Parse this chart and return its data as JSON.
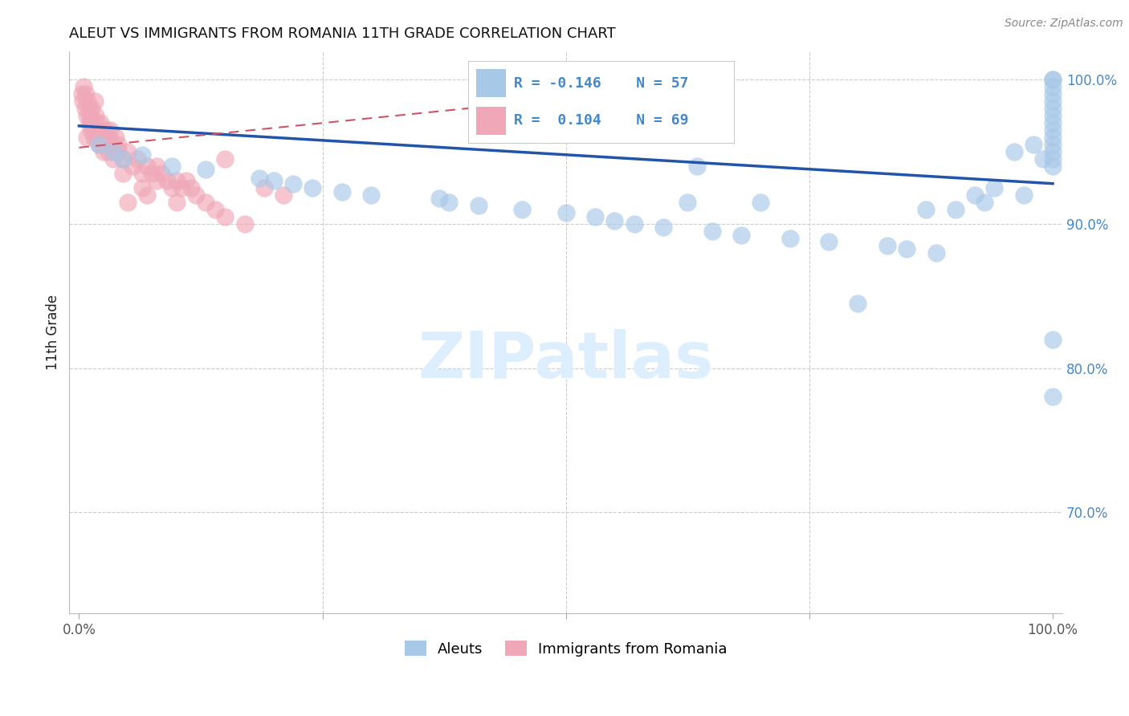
{
  "title": "ALEUT VS IMMIGRANTS FROM ROMANIA 11TH GRADE CORRELATION CHART",
  "source": "Source: ZipAtlas.com",
  "ylabel": "11th Grade",
  "legend_label_blue": "Aleuts",
  "legend_label_pink": "Immigrants from Romania",
  "blue_color": "#a8c8e8",
  "pink_color": "#f0a8b8",
  "blue_line_color": "#2255aa",
  "pink_line_color": "#cc5566",
  "watermark_color": "#ddeeff",
  "right_axis_color": "#4488cc",
  "grid_color": "#cccccc",
  "aleuts_x": [
    2.0,
    3.5,
    4.5,
    6.5,
    9.5,
    13.0,
    18.5,
    20.0,
    22.0,
    24.0,
    27.0,
    30.0,
    37.0,
    38.0,
    41.0,
    45.5,
    50.0,
    53.0,
    55.0,
    57.0,
    60.0,
    62.5,
    63.5,
    65.0,
    68.0,
    70.0,
    73.0,
    77.0,
    80.0,
    83.0,
    85.0,
    87.0,
    88.0,
    90.0,
    92.0,
    93.0,
    94.0,
    96.0,
    97.0,
    98.0,
    99.0,
    100.0,
    100.0,
    100.0,
    100.0,
    100.0,
    100.0,
    100.0,
    100.0,
    100.0,
    100.0,
    100.0,
    100.0,
    100.0,
    100.0,
    100.0,
    100.0
  ],
  "aleuts_y": [
    95.5,
    95.0,
    94.5,
    94.8,
    94.0,
    93.8,
    93.2,
    93.0,
    92.8,
    92.5,
    92.2,
    92.0,
    91.8,
    91.5,
    91.3,
    91.0,
    90.8,
    90.5,
    90.2,
    90.0,
    89.8,
    91.5,
    94.0,
    89.5,
    89.2,
    91.5,
    89.0,
    88.8,
    84.5,
    88.5,
    88.3,
    91.0,
    88.0,
    91.0,
    92.0,
    91.5,
    92.5,
    95.0,
    92.0,
    95.5,
    94.5,
    100.0,
    100.0,
    99.5,
    99.0,
    98.5,
    98.0,
    97.5,
    97.0,
    96.5,
    96.0,
    95.5,
    95.0,
    94.5,
    94.0,
    82.0,
    78.0
  ],
  "romania_x": [
    0.3,
    0.4,
    0.5,
    0.6,
    0.7,
    0.8,
    0.9,
    1.0,
    1.0,
    1.1,
    1.2,
    1.3,
    1.4,
    1.5,
    1.6,
    1.7,
    1.8,
    1.9,
    2.0,
    2.1,
    2.2,
    2.3,
    2.4,
    2.5,
    2.6,
    2.7,
    2.8,
    3.0,
    3.2,
    3.5,
    3.8,
    4.0,
    4.5,
    5.0,
    5.5,
    6.0,
    6.5,
    7.0,
    7.5,
    8.0,
    8.5,
    9.0,
    9.5,
    10.0,
    10.5,
    11.0,
    11.5,
    12.0,
    13.0,
    14.0,
    15.0,
    17.0,
    19.0,
    21.0,
    4.5,
    8.0,
    15.0,
    5.0,
    7.0,
    10.0,
    3.0,
    6.5,
    4.0,
    2.5,
    1.5,
    0.8,
    1.2,
    2.0,
    3.5
  ],
  "romania_y": [
    99.0,
    98.5,
    99.5,
    98.0,
    99.0,
    97.5,
    98.5,
    97.0,
    98.0,
    97.5,
    96.5,
    98.0,
    97.0,
    96.0,
    98.5,
    97.5,
    96.0,
    97.0,
    95.5,
    96.5,
    97.0,
    95.5,
    96.0,
    95.0,
    96.0,
    95.5,
    96.5,
    95.0,
    96.5,
    95.5,
    96.0,
    95.5,
    94.5,
    95.0,
    94.0,
    94.5,
    93.5,
    94.0,
    93.5,
    93.0,
    93.5,
    93.0,
    92.5,
    93.0,
    92.5,
    93.0,
    92.5,
    92.0,
    91.5,
    91.0,
    90.5,
    90.0,
    92.5,
    92.0,
    93.5,
    94.0,
    94.5,
    91.5,
    92.0,
    91.5,
    96.0,
    92.5,
    95.0,
    95.5,
    96.5,
    96.0,
    97.0,
    96.0,
    94.5
  ],
  "blue_trend_x": [
    0,
    100
  ],
  "blue_trend_y": [
    96.8,
    92.8
  ],
  "pink_trend_x": [
    0,
    47
  ],
  "pink_trend_y": [
    95.3,
    98.5
  ],
  "xlim": [
    -1,
    101
  ],
  "ylim": [
    63,
    102
  ],
  "yticks": [
    70,
    80,
    90,
    100
  ],
  "xtick_positions": [
    0,
    25,
    50,
    75,
    100
  ]
}
